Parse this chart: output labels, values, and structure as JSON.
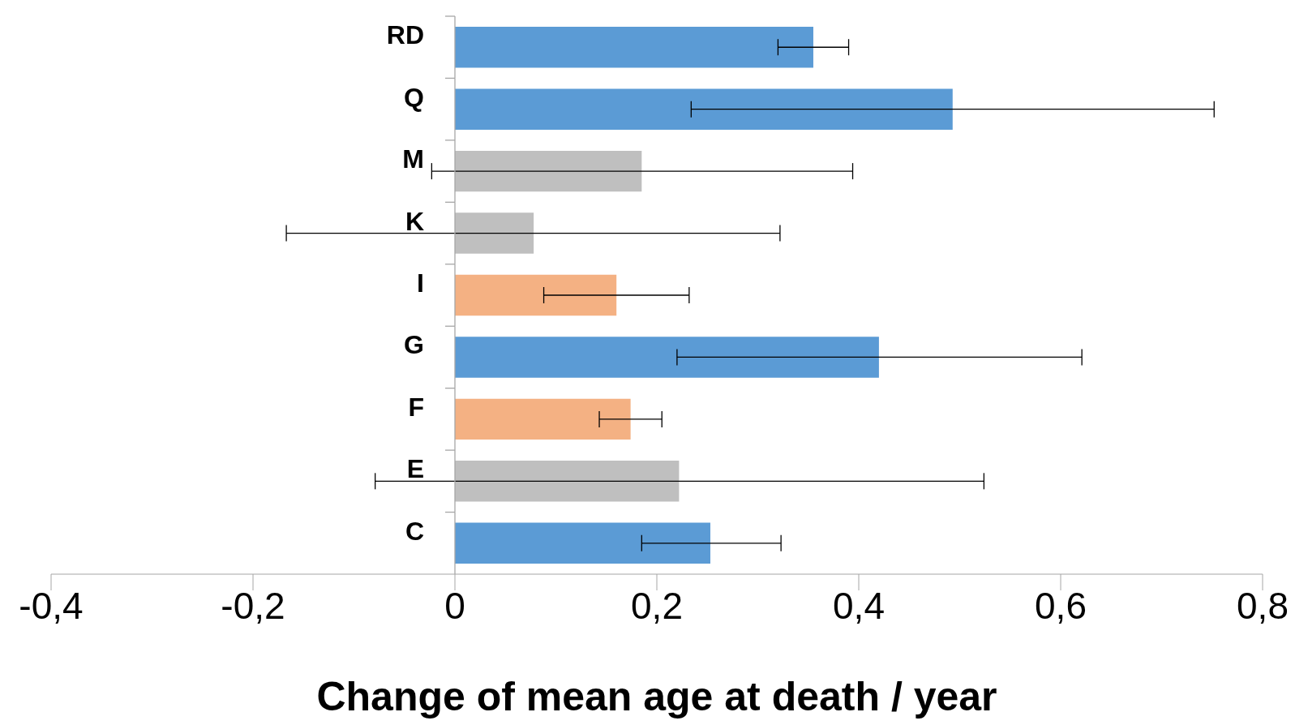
{
  "chart_data": {
    "type": "bar",
    "orientation": "horizontal",
    "xlabel": "Change of mean age at death / year",
    "categories": [
      "RD",
      "Q",
      "M",
      "K",
      "I",
      "G",
      "F",
      "E",
      "C"
    ],
    "values": [
      0.355,
      0.493,
      0.185,
      0.078,
      0.16,
      0.42,
      0.174,
      0.222,
      0.253
    ],
    "colors": [
      "#5b9bd5",
      "#5b9bd5",
      "#bfbfbf",
      "#bfbfbf",
      "#f4b183",
      "#5b9bd5",
      "#f4b183",
      "#bfbfbf",
      "#5b9bd5"
    ],
    "errors": [
      [
        0.32,
        0.39
      ],
      [
        0.234,
        0.752
      ],
      [
        -0.023,
        0.394
      ],
      [
        -0.167,
        0.322
      ],
      [
        0.088,
        0.232
      ],
      [
        0.22,
        0.621
      ],
      [
        0.143,
        0.205
      ],
      [
        -0.079,
        0.524
      ],
      [
        0.185,
        0.323
      ]
    ],
    "xlim": [
      -0.4,
      0.8
    ],
    "xticks": [
      {
        "value": -0.4,
        "label": "-0,4"
      },
      {
        "value": -0.2,
        "label": "-0,2"
      },
      0,
      {
        "value": 0.2,
        "label": "0,2"
      },
      {
        "value": 0.4,
        "label": "0,4"
      },
      {
        "value": 0.6,
        "label": "0,6"
      },
      {
        "value": 0.8,
        "label": "0,8"
      }
    ]
  }
}
